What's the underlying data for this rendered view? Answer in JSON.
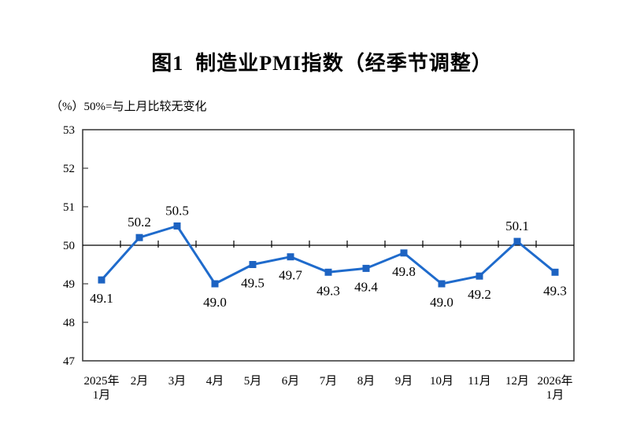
{
  "chart_data": {
    "type": "line",
    "title": "图1  制造业PMI指数（经季节调整）",
    "unit_note": "（%）50%=与上月比较无变化",
    "series_name": "制造业PMI",
    "categories": [
      "2025年\n1月",
      "2月",
      "3月",
      "4月",
      "5月",
      "6月",
      "7月",
      "8月",
      "9月",
      "10月",
      "11月",
      "12月",
      "2026年\n1月"
    ],
    "values": [
      49.1,
      50.2,
      50.5,
      49.0,
      49.5,
      49.7,
      49.3,
      49.4,
      49.8,
      49.0,
      49.2,
      50.1,
      49.3
    ],
    "data_labels": [
      "49.1",
      "50.2",
      "50.5",
      "49.0",
      "49.5",
      "49.7",
      "49.3",
      "49.4",
      "49.8",
      "49.0",
      "49.2",
      "50.1",
      "49.3"
    ],
    "ylim": [
      47,
      53
    ],
    "yticks": [
      47,
      48,
      49,
      50,
      51,
      52,
      53
    ],
    "reference_line": 50,
    "grid": false,
    "legend": "none",
    "colors": {
      "line": "#1f6bcc",
      "marker": "#1d63c2",
      "axis": "#3f3f3f",
      "reference": "#000000",
      "text": "#000000",
      "background": "#ffffff"
    }
  }
}
